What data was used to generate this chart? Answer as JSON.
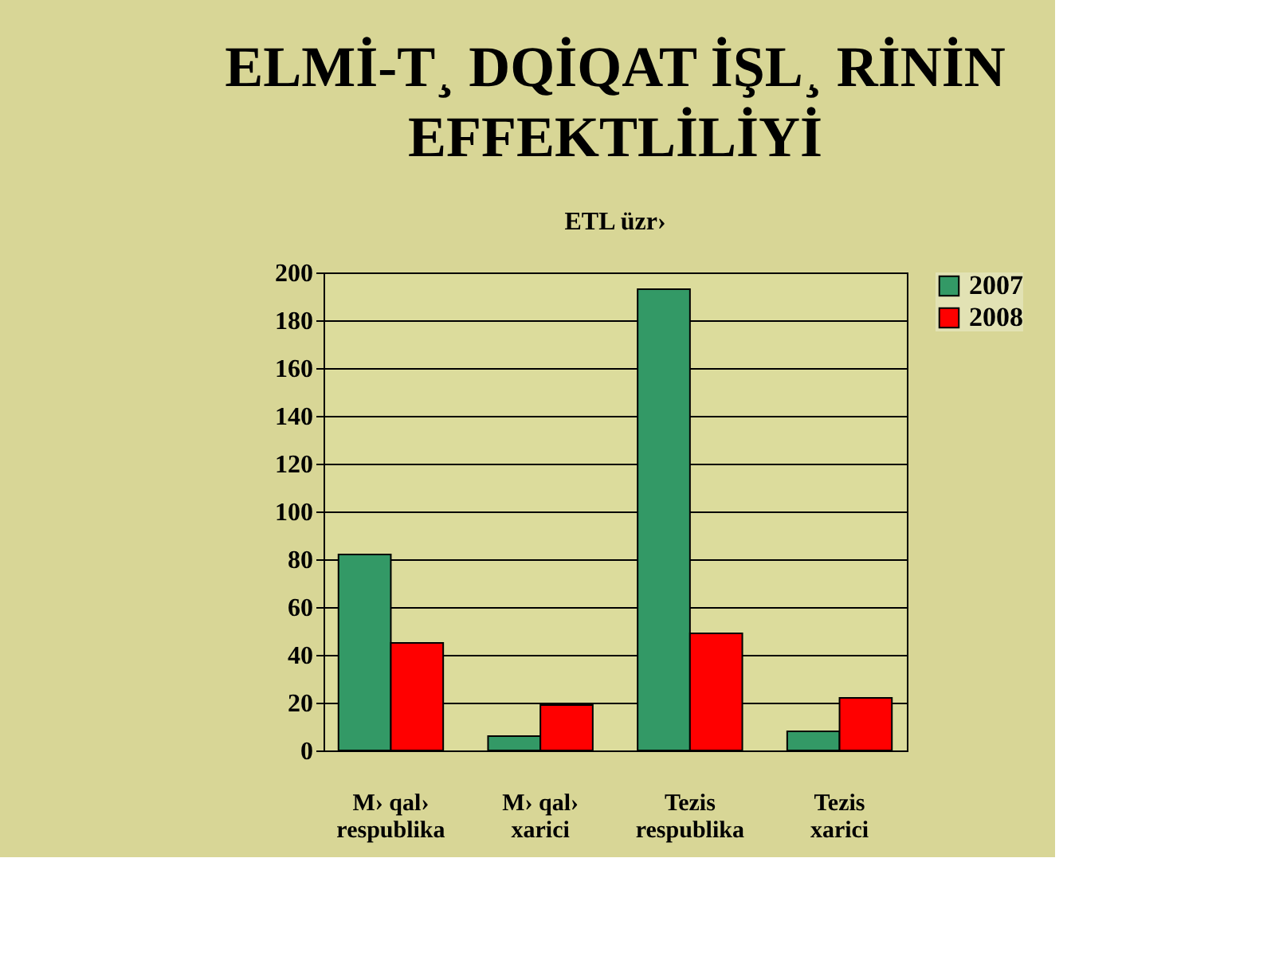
{
  "chart_data": {
    "type": "bar",
    "title": "ELMİ-T¸ DQİQAT İŞL¸ RİNİN\nEFFEKTLİLİYİ",
    "subtitle": "ETL üzr›",
    "categories": [
      "M› qal›\nrespublika",
      "M› qal›\nxarici",
      "Tezis\nrespublika",
      "Tezis\nxarici"
    ],
    "series": [
      {
        "name": "2007",
        "color": "#339966",
        "values": [
          82,
          6,
          193,
          8
        ]
      },
      {
        "name": "2008",
        "color": "#ff0000",
        "values": [
          45,
          19,
          49,
          22
        ]
      }
    ],
    "ylim": [
      0,
      200
    ],
    "yticks": [
      0,
      20,
      40,
      60,
      80,
      100,
      120,
      140,
      160,
      180,
      200
    ],
    "grid": "y",
    "legend": "right"
  }
}
